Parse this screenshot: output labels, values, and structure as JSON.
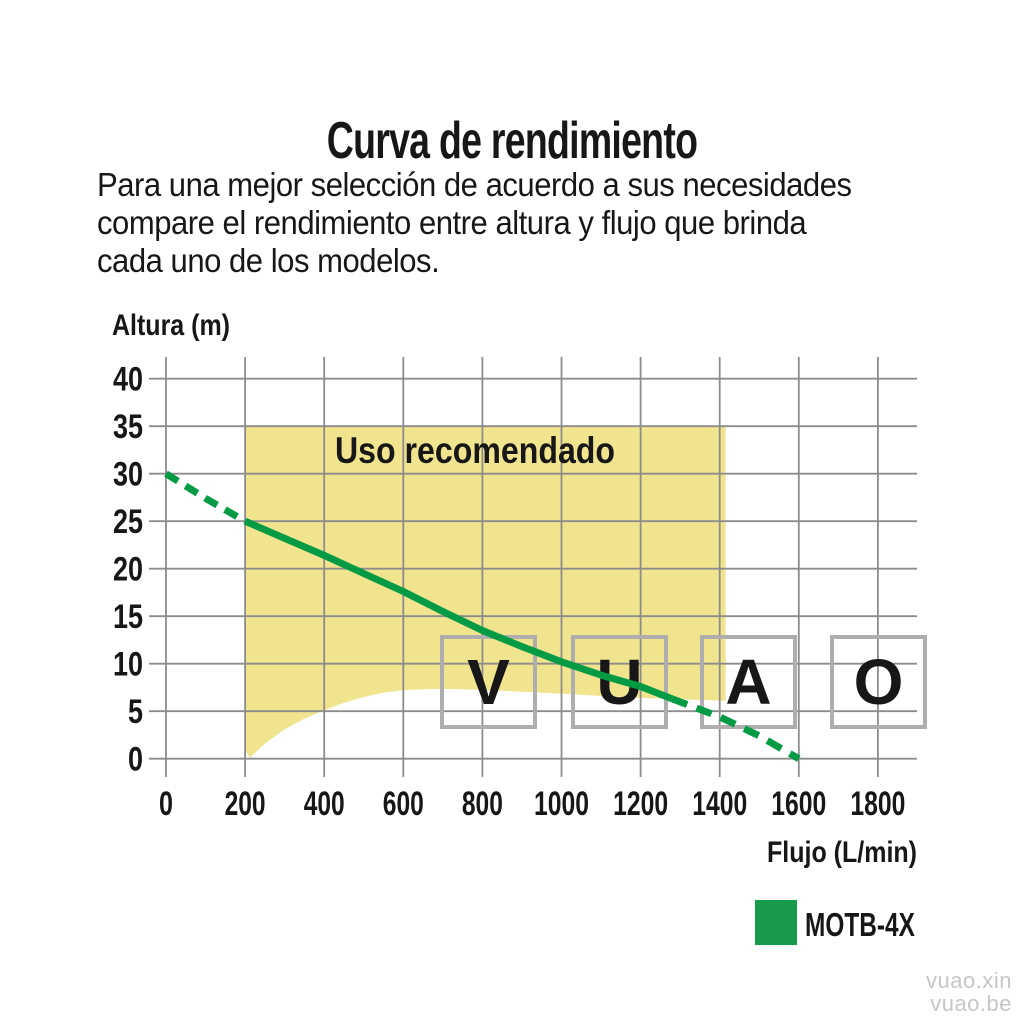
{
  "page": {
    "title": "Curva de rendimiento",
    "description_lines": [
      "Para una mejor selección de acuerdo a sus necesidades",
      "compare el rendimiento entre altura y flujo que brinda",
      "cada uno de los modelos."
    ],
    "site_watermark": [
      "vuao.xin",
      "vuao.be"
    ]
  },
  "legend": {
    "model": "MOTB-4X",
    "color": "#169c4a"
  },
  "chart_data": {
    "type": "line",
    "title": "Curva de rendimiento",
    "xlabel": "Flujo (L/min)",
    "ylabel": "Altura (m)",
    "xlim": [
      0,
      1900
    ],
    "ylim": [
      0,
      42
    ],
    "grid": true,
    "x_ticks": [
      0,
      200,
      400,
      600,
      800,
      1000,
      1200,
      1400,
      1600,
      1800
    ],
    "y_ticks": [
      0,
      5,
      10,
      15,
      20,
      25,
      30,
      35,
      40
    ],
    "region": {
      "label": "Uso recomendado",
      "color": "#f0e48e",
      "polygon": [
        [
          200,
          35
        ],
        [
          1415,
          35
        ],
        [
          1415,
          6.1
        ],
        [
          1300,
          6.25
        ],
        [
          1200,
          6.4
        ],
        [
          1100,
          6.6
        ],
        [
          1000,
          6.85
        ],
        [
          900,
          7.05
        ],
        [
          800,
          7.25
        ],
        [
          700,
          7.35
        ],
        [
          640,
          7.3
        ],
        [
          600,
          7.2
        ],
        [
          550,
          6.95
        ],
        [
          500,
          6.5
        ],
        [
          450,
          5.9
        ],
        [
          400,
          5.1
        ],
        [
          350,
          4.2
        ],
        [
          300,
          3.1
        ],
        [
          250,
          1.6
        ],
        [
          212,
          0.1
        ],
        [
          200,
          1.0
        ]
      ]
    },
    "watermark_letters": [
      "V",
      "U",
      "A",
      "O"
    ],
    "series": [
      {
        "name": "MOTB-4X",
        "color": "#049b44",
        "dashed_head": [
          [
            0,
            30
          ],
          [
            100,
            27.4
          ],
          [
            200,
            25
          ]
        ],
        "solid": [
          [
            200,
            25
          ],
          [
            300,
            23.2
          ],
          [
            400,
            21.4
          ],
          [
            500,
            19.5
          ],
          [
            600,
            17.6
          ],
          [
            700,
            15.5
          ],
          [
            800,
            13.5
          ],
          [
            900,
            11.8
          ],
          [
            1000,
            10.2
          ],
          [
            1100,
            8.8
          ],
          [
            1200,
            7.6
          ],
          [
            1280,
            6.3
          ]
        ],
        "dashed_tail": [
          [
            1280,
            6.3
          ],
          [
            1400,
            4.4
          ],
          [
            1500,
            2.4
          ],
          [
            1600,
            0
          ]
        ]
      }
    ]
  }
}
